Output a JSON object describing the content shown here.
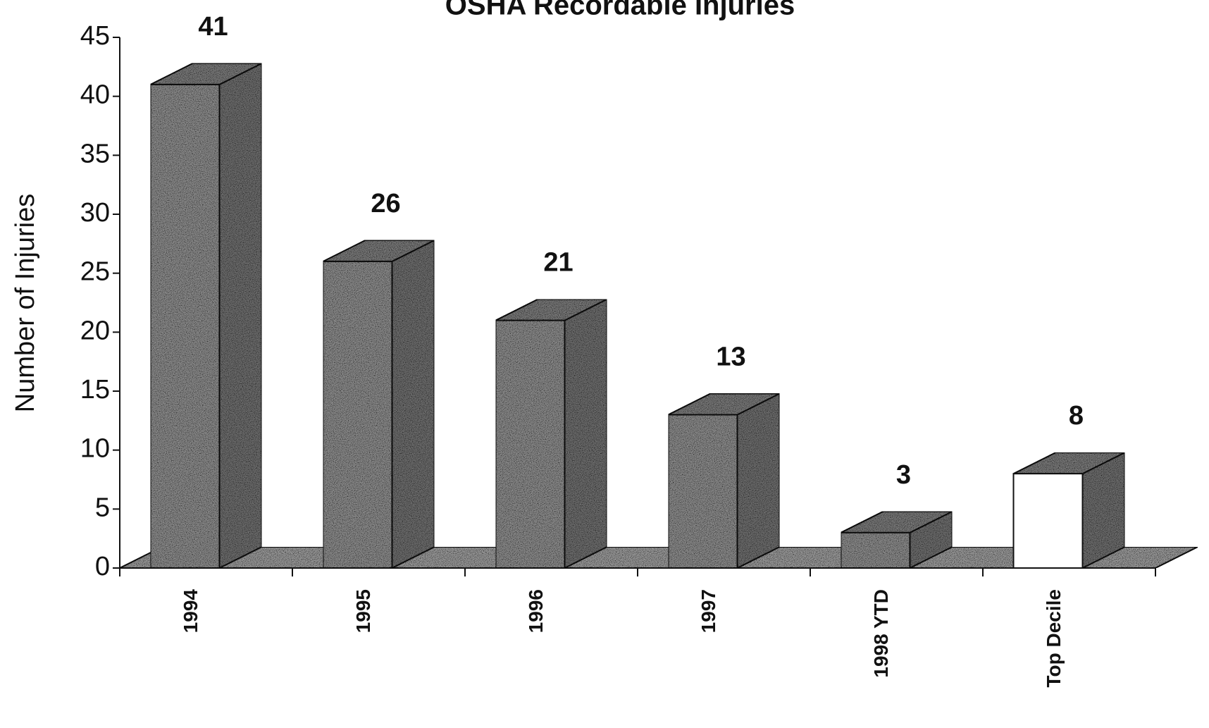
{
  "chart_data": {
    "type": "bar3d",
    "title": "OSHA Recordable Injuries",
    "y_label": "Number of Injuries",
    "categories": [
      "1994",
      "1995",
      "1996",
      "1997",
      "1998 YTD",
      "Top Decile"
    ],
    "values": [
      41,
      26,
      21,
      13,
      3,
      8
    ],
    "colors": [
      "#8c8c8c",
      "#8c8c8c",
      "#8c8c8c",
      "#8c8c8c",
      "#8c8c8c",
      "#ffffff"
    ],
    "ylim": [
      0,
      45
    ],
    "yticks": [
      0,
      5,
      10,
      15,
      20,
      25,
      30,
      35,
      40,
      45
    ],
    "grid": false
  }
}
